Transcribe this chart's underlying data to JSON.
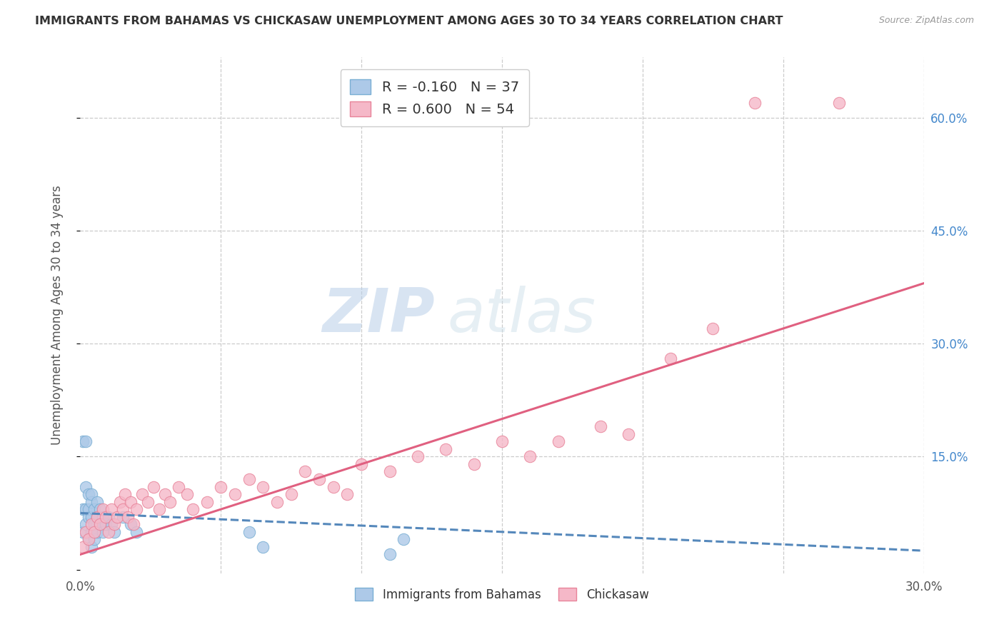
{
  "title": "IMMIGRANTS FROM BAHAMAS VS CHICKASAW UNEMPLOYMENT AMONG AGES 30 TO 34 YEARS CORRELATION CHART",
  "source": "Source: ZipAtlas.com",
  "ylabel": "Unemployment Among Ages 30 to 34 years",
  "watermark_zip": "ZIP",
  "watermark_atlas": "atlas",
  "xlim": [
    0.0,
    0.3
  ],
  "ylim": [
    -0.005,
    0.68
  ],
  "series1_color": "#adc9e8",
  "series1_edgecolor": "#7aafd4",
  "series1_label": "Immigrants from Bahamas",
  "series1_R": "-0.160",
  "series1_N": "37",
  "series2_color": "#f5b8c8",
  "series2_edgecolor": "#e8849a",
  "series2_label": "Chickasaw",
  "series2_R": "0.600",
  "series2_N": "54",
  "trendline1_color": "#5588bb",
  "trendline2_color": "#e06080",
  "background_color": "#ffffff",
  "grid_color": "#cccccc",
  "series1_x": [
    0.001,
    0.001,
    0.001,
    0.002,
    0.002,
    0.002,
    0.002,
    0.003,
    0.003,
    0.003,
    0.003,
    0.004,
    0.004,
    0.004,
    0.004,
    0.004,
    0.005,
    0.005,
    0.005,
    0.006,
    0.006,
    0.006,
    0.007,
    0.007,
    0.008,
    0.008,
    0.009,
    0.01,
    0.011,
    0.012,
    0.015,
    0.018,
    0.02,
    0.06,
    0.065,
    0.11,
    0.115
  ],
  "series1_y": [
    0.05,
    0.08,
    0.17,
    0.06,
    0.08,
    0.11,
    0.17,
    0.04,
    0.07,
    0.08,
    0.1,
    0.03,
    0.05,
    0.07,
    0.09,
    0.1,
    0.04,
    0.06,
    0.08,
    0.05,
    0.07,
    0.09,
    0.06,
    0.08,
    0.05,
    0.07,
    0.06,
    0.07,
    0.06,
    0.05,
    0.07,
    0.06,
    0.05,
    0.05,
    0.03,
    0.02,
    0.04
  ],
  "series2_x": [
    0.001,
    0.002,
    0.003,
    0.004,
    0.005,
    0.006,
    0.007,
    0.008,
    0.009,
    0.01,
    0.011,
    0.012,
    0.013,
    0.014,
    0.015,
    0.016,
    0.017,
    0.018,
    0.019,
    0.02,
    0.022,
    0.024,
    0.026,
    0.028,
    0.03,
    0.032,
    0.035,
    0.038,
    0.04,
    0.045,
    0.05,
    0.055,
    0.06,
    0.065,
    0.07,
    0.075,
    0.08,
    0.085,
    0.09,
    0.095,
    0.1,
    0.11,
    0.12,
    0.13,
    0.14,
    0.15,
    0.16,
    0.17,
    0.185,
    0.195,
    0.21,
    0.225,
    0.24,
    0.27
  ],
  "series2_y": [
    0.03,
    0.05,
    0.04,
    0.06,
    0.05,
    0.07,
    0.06,
    0.08,
    0.07,
    0.05,
    0.08,
    0.06,
    0.07,
    0.09,
    0.08,
    0.1,
    0.07,
    0.09,
    0.06,
    0.08,
    0.1,
    0.09,
    0.11,
    0.08,
    0.1,
    0.09,
    0.11,
    0.1,
    0.08,
    0.09,
    0.11,
    0.1,
    0.12,
    0.11,
    0.09,
    0.1,
    0.13,
    0.12,
    0.11,
    0.1,
    0.14,
    0.13,
    0.15,
    0.16,
    0.14,
    0.17,
    0.15,
    0.17,
    0.19,
    0.18,
    0.28,
    0.32,
    0.62,
    0.62
  ],
  "trendline1_x": [
    0.0,
    0.3
  ],
  "trendline1_y": [
    0.075,
    0.025
  ],
  "trendline2_x": [
    0.0,
    0.3
  ],
  "trendline2_y": [
    0.02,
    0.38
  ]
}
